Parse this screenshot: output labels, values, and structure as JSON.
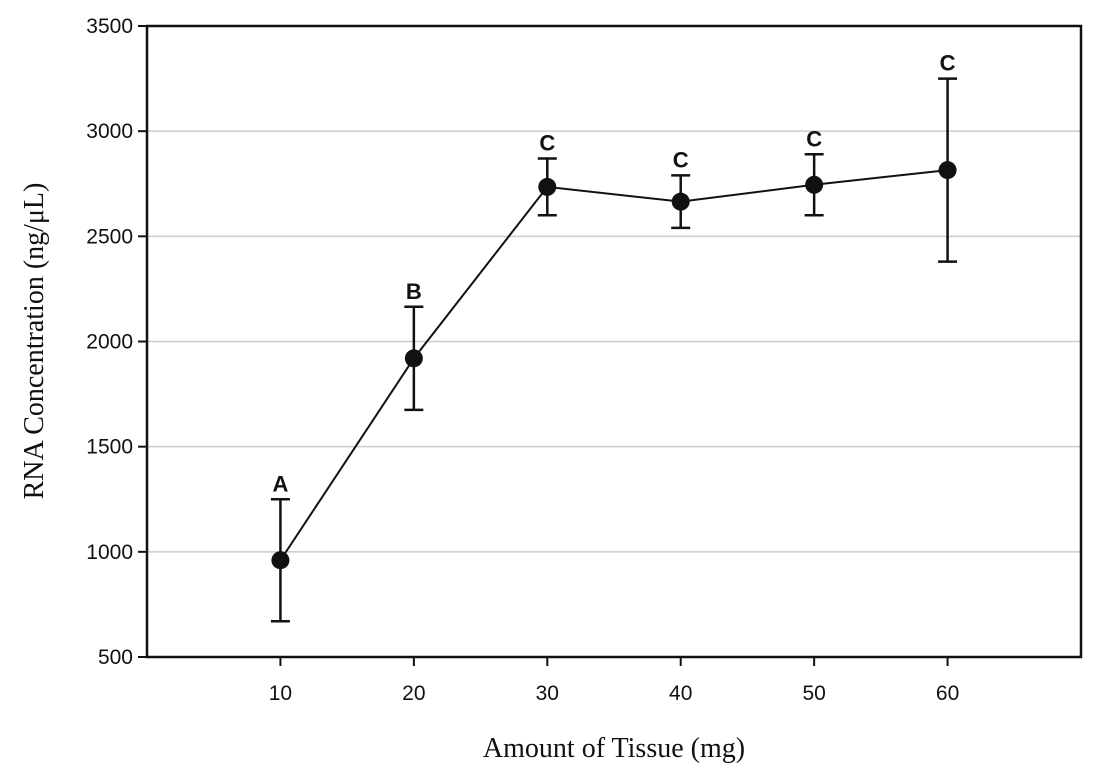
{
  "chart_data": {
    "type": "line",
    "title": "",
    "xlabel": "Amount of Tissue (mg)",
    "ylabel": "RNA Concentration (ng/μL)",
    "x": [
      10,
      20,
      30,
      40,
      50,
      60
    ],
    "series": [
      {
        "name": "RNA concentration",
        "values": [
          960,
          1920,
          2735,
          2665,
          2745,
          2815
        ],
        "y_err": [
          290,
          245,
          135,
          125,
          145,
          435
        ],
        "point_labels": [
          "A",
          "B",
          "C",
          "C",
          "C",
          "C"
        ]
      }
    ],
    "xlim": [
      0,
      70
    ],
    "ylim": [
      500,
      3500
    ],
    "x_ticks": [
      10,
      20,
      30,
      40,
      50,
      60
    ],
    "y_ticks": [
      500,
      1000,
      1500,
      2000,
      2500,
      3000,
      3500
    ],
    "grid": "horizontal gridlines at interior y ticks",
    "legend_position": "none",
    "colors": {
      "line": "#111111",
      "marker": "#111111",
      "error_bar": "#111111",
      "frame": "#111111",
      "gridline": "#cccccc",
      "tick_label": "#111111",
      "background": "#ffffff"
    }
  }
}
